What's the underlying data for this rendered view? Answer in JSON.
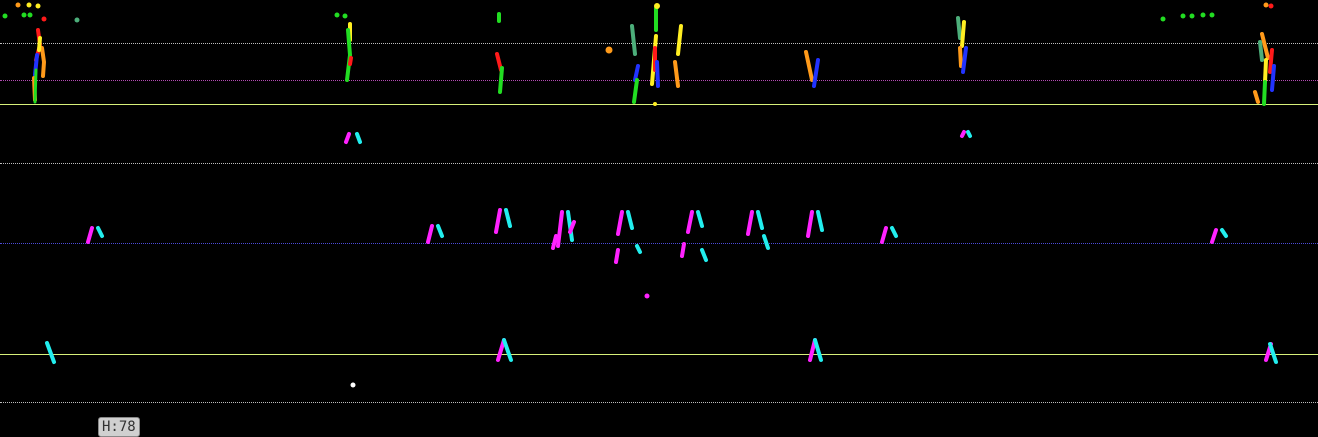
{
  "colors": {
    "background": "#000000",
    "guide_white": "#bdbdbd",
    "guide_magenta": "#b44ab4",
    "guide_blue": "#4b4bd6",
    "guide_yellow": "#d7f07a",
    "red": "#ff1a1a",
    "orange": "#ff9a1a",
    "yellow": "#ffee22",
    "green": "#22dd22",
    "blue": "#2233ff",
    "teal": "#4cae7a",
    "magenta": "#ff22ff",
    "cyan": "#22eeee",
    "white": "#ffffff"
  },
  "badge": {
    "label": "H:78"
  }
}
